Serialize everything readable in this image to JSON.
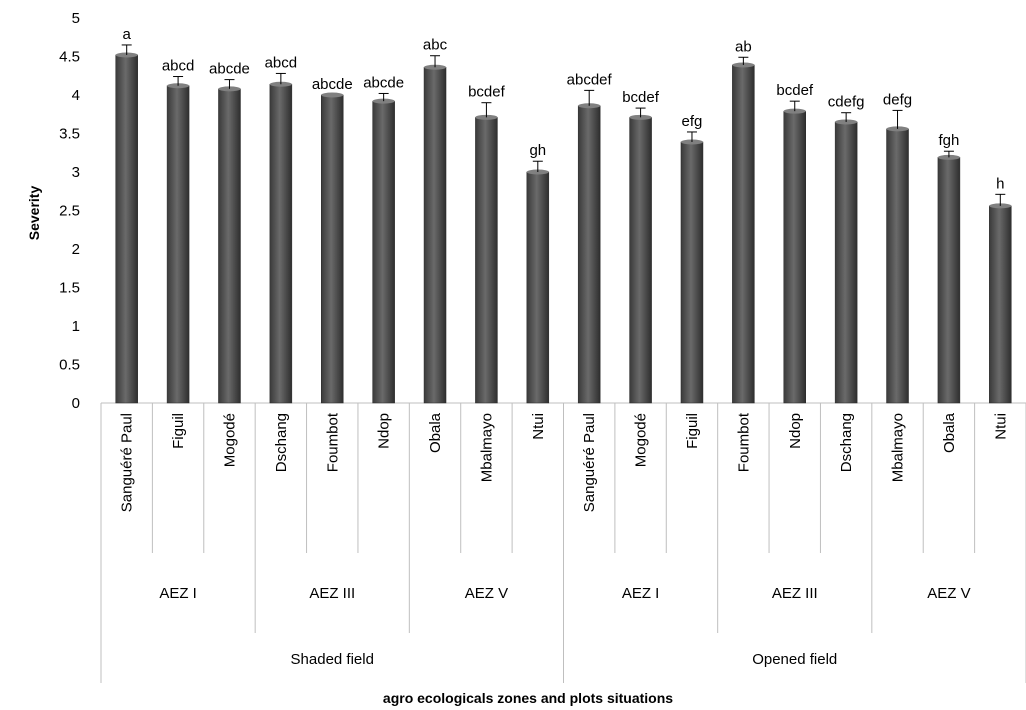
{
  "chart_data": {
    "type": "bar",
    "ylabel": "Severity",
    "xlabel": "agro ecologicals zones and plots situations",
    "ylim": [
      0,
      5
    ],
    "yticks": [
      "0",
      "0.5",
      "1",
      "1.5",
      "2",
      "2.5",
      "3",
      "3.5",
      "4",
      "4.5",
      "5"
    ],
    "grid": false,
    "bar_color": "#4a4a4a",
    "categories": [
      "Sanguéré Paul",
      "Figuil",
      "Mogodé",
      "Dschang",
      "Foumbot",
      "Ndop",
      "Obala",
      "Mbalmayo",
      "Ntui",
      "Sanguéré Paul",
      "Mogodé",
      "Figuil",
      "Foumbot",
      "Ndop",
      "Dschang",
      "Mbalmayo",
      "Obala",
      "Ntui"
    ],
    "values": [
      4.52,
      4.12,
      4.08,
      4.14,
      4.0,
      3.92,
      4.36,
      3.71,
      3.0,
      3.86,
      3.71,
      3.39,
      4.39,
      3.79,
      3.65,
      3.56,
      3.19,
      2.56
    ],
    "errors": [
      0.13,
      0.12,
      0.12,
      0.14,
      0.0,
      0.1,
      0.15,
      0.19,
      0.14,
      0.2,
      0.12,
      0.13,
      0.1,
      0.13,
      0.12,
      0.24,
      0.08,
      0.15
    ],
    "letters": [
      "a",
      "abcd",
      "abcde",
      "abcd",
      "abcde",
      "abcde",
      "abc",
      "bcdef",
      "gh",
      "abcdef",
      "bcdef",
      "efg",
      "ab",
      "bcdef",
      "cdefg",
      "defg",
      "fgh",
      "h"
    ],
    "zones": [
      {
        "label": "AEZ I",
        "count": 3
      },
      {
        "label": "AEZ III",
        "count": 3
      },
      {
        "label": "AEZ V",
        "count": 3
      },
      {
        "label": "AEZ I",
        "count": 3
      },
      {
        "label": "AEZ III",
        "count": 3
      },
      {
        "label": "AEZ V",
        "count": 3
      }
    ],
    "situations": [
      {
        "label": "Shaded field",
        "count": 9
      },
      {
        "label": "Opened field",
        "count": 9
      }
    ]
  }
}
